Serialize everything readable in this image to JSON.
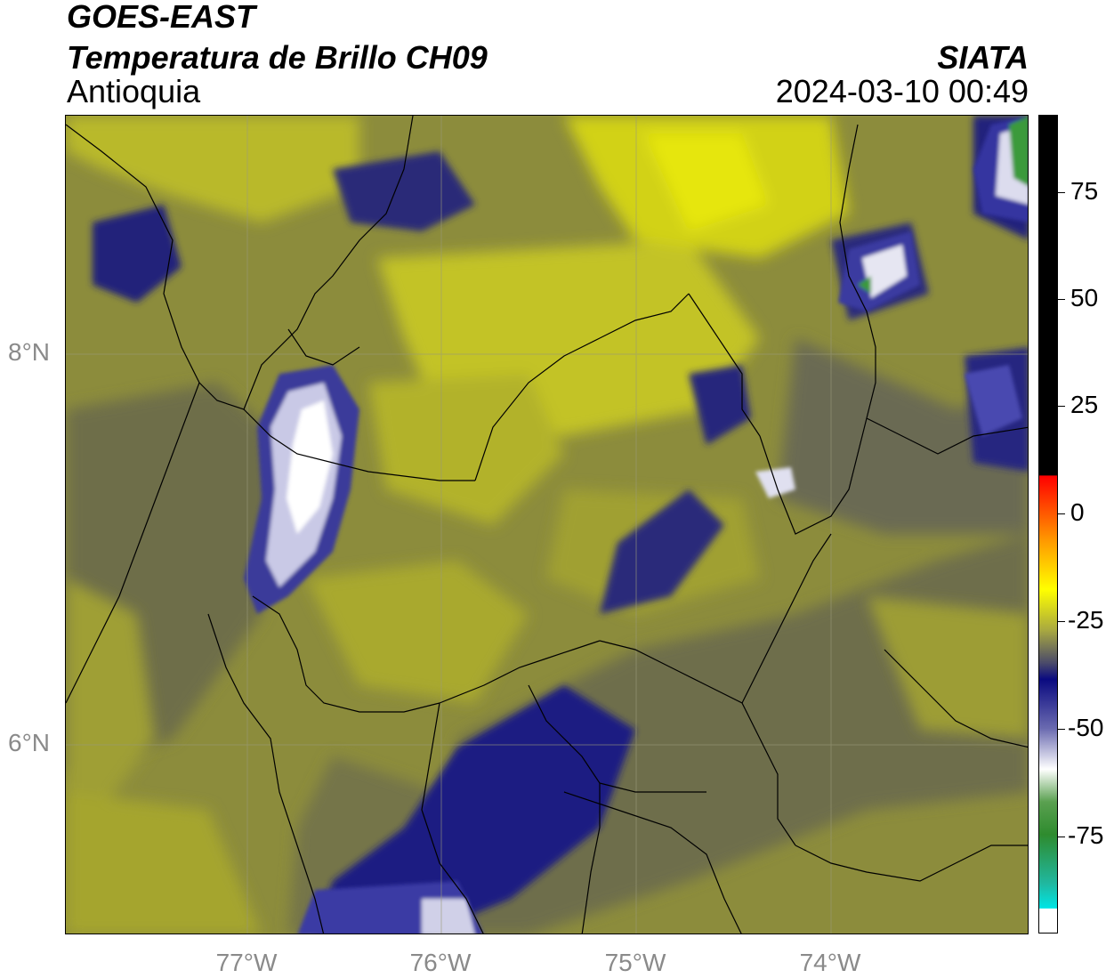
{
  "header": {
    "satellite": "GOES-EAST",
    "product": "Temperatura de Brillo CH09",
    "region": "Antioquia",
    "organization": "SIATA",
    "datetime": "2024-03-10 00:49"
  },
  "map": {
    "lat_labels": [
      "8°N",
      "6°N"
    ],
    "lon_labels": [
      "77°W",
      "76°W",
      "75°W",
      "74°W"
    ]
  },
  "colorbar": {
    "ticks": [
      "75",
      "50",
      "25",
      "0",
      "-25",
      "-50",
      "-75"
    ],
    "colors": {
      "top": "#000000",
      "warm": "#ff0000",
      "orange": "#ff9900",
      "yellow": "#ffff00",
      "olive": "#8a8a3a",
      "navy": "#0a0a80",
      "white": "#ffffff",
      "green": "#2e8b2e",
      "cyan": "#00e5e5"
    }
  }
}
